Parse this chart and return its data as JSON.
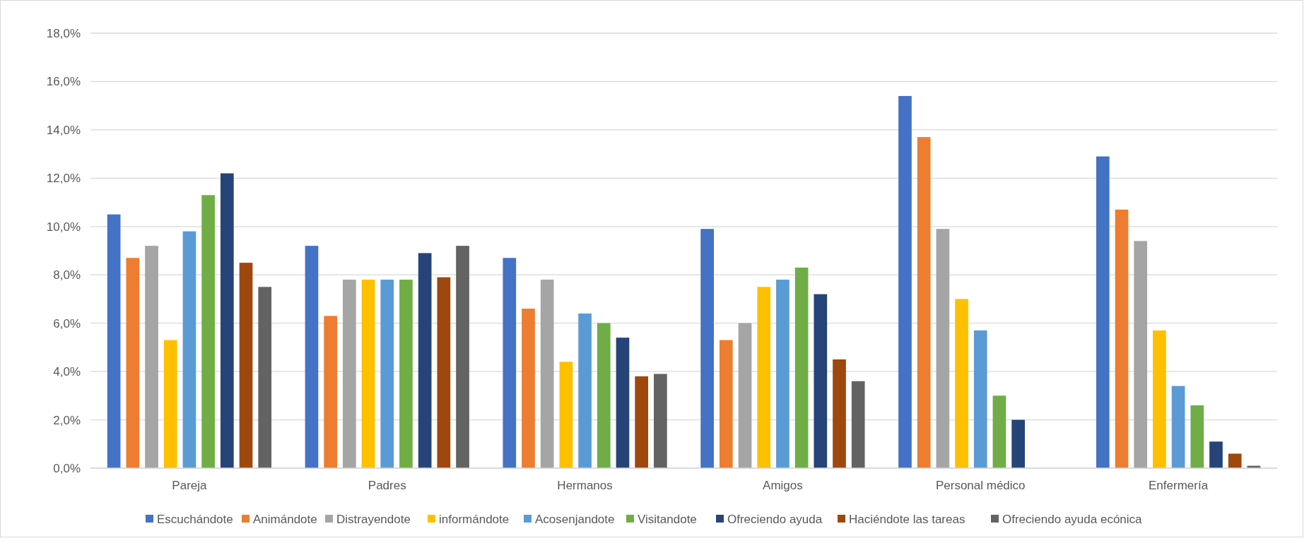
{
  "chart_data": {
    "type": "bar",
    "categories": [
      "Pareja",
      "Padres",
      "Hermanos",
      "Amigos",
      "Personal médico",
      "Enfermería"
    ],
    "series": [
      {
        "name": "Escuchándote",
        "color": "#4472c4",
        "values": [
          10.5,
          9.2,
          8.7,
          9.9,
          15.4,
          12.9
        ]
      },
      {
        "name": "Animándote",
        "color": "#ed7d31",
        "values": [
          8.7,
          6.3,
          6.6,
          5.3,
          13.7,
          10.7
        ]
      },
      {
        "name": "Distrayendote",
        "color": "#a5a5a5",
        "values": [
          9.2,
          7.8,
          7.8,
          6.0,
          9.9,
          9.4
        ]
      },
      {
        "name": "informándote",
        "color": "#ffc000",
        "values": [
          5.3,
          7.8,
          4.4,
          7.5,
          7.0,
          5.7
        ]
      },
      {
        "name": "Acosenjandote",
        "color": "#5b9bd5",
        "values": [
          9.8,
          7.8,
          6.4,
          7.8,
          5.7,
          3.4
        ]
      },
      {
        "name": "Visitandote",
        "color": "#70ad47",
        "values": [
          11.3,
          7.8,
          6.0,
          8.3,
          3.0,
          2.6
        ]
      },
      {
        "name": "Ofreciendo ayuda",
        "color": "#264478",
        "values": [
          12.2,
          8.9,
          5.4,
          7.2,
          2.0,
          1.1
        ]
      },
      {
        "name": "Haciéndote las tareas",
        "color": "#9e480e",
        "values": [
          8.5,
          7.9,
          3.8,
          4.5,
          0,
          0.6
        ]
      },
      {
        "name": "Ofreciendo ayuda ecónica",
        "color": "#636363",
        "values": [
          7.5,
          9.2,
          3.9,
          3.6,
          0,
          0.1
        ]
      }
    ],
    "ylim": [
      0,
      18
    ],
    "yticks": [
      {
        "value": 0,
        "label": "0,0%"
      },
      {
        "value": 2,
        "label": "2,0%"
      },
      {
        "value": 4,
        "label": "4,0%"
      },
      {
        "value": 6,
        "label": "6,0%"
      },
      {
        "value": 8,
        "label": "8,0%"
      },
      {
        "value": 10,
        "label": "10,0%"
      },
      {
        "value": 12,
        "label": "12,0%"
      },
      {
        "value": 14,
        "label": "14,0%"
      },
      {
        "value": 16,
        "label": "16,0%"
      },
      {
        "value": 18,
        "label": "18,0%"
      }
    ],
    "grid": "y",
    "legend": "bottom"
  }
}
